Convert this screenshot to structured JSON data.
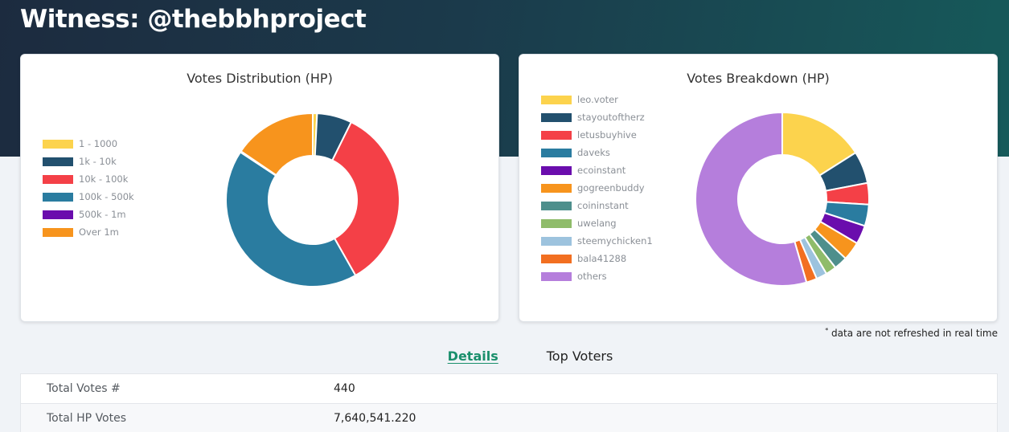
{
  "page": {
    "title": "Witness: @thebbhproject"
  },
  "distribution_card": {
    "title": "Votes Distribution (HP)",
    "legend": [
      {
        "label": "1 - 1000",
        "color": "#fcd34d"
      },
      {
        "label": "1k - 10k",
        "color": "#22506e"
      },
      {
        "label": "10k - 100k",
        "color": "#f44047"
      },
      {
        "label": "100k - 500k",
        "color": "#2a7ca0"
      },
      {
        "label": "500k - 1m",
        "color": "#6a0dad"
      },
      {
        "label": "Over 1m",
        "color": "#f7941d"
      }
    ]
  },
  "breakdown_card": {
    "title": "Votes Breakdown (HP)",
    "legend": [
      {
        "label": "leo.voter",
        "color": "#fcd34d"
      },
      {
        "label": "stayoutoftherz",
        "color": "#22506e"
      },
      {
        "label": "letusbuyhive",
        "color": "#f44047"
      },
      {
        "label": "daveks",
        "color": "#2a7ca0"
      },
      {
        "label": "ecoinstant",
        "color": "#6a0dad"
      },
      {
        "label": "gogreenbuddy",
        "color": "#f7941d"
      },
      {
        "label": "coininstant",
        "color": "#4e8f8c"
      },
      {
        "label": "uwelang",
        "color": "#8fbc6a"
      },
      {
        "label": "steemychicken1",
        "color": "#9dc3de"
      },
      {
        "label": "bala41288",
        "color": "#f26f21"
      },
      {
        "label": "others",
        "color": "#b57edc"
      }
    ]
  },
  "chart_data": [
    {
      "type": "pie",
      "title": "Votes Distribution (HP)",
      "categories": [
        "1 - 1000",
        "1k - 10k",
        "10k - 100k",
        "100k - 500k",
        "500k - 1m",
        "Over 1m"
      ],
      "values": [
        0.8,
        6.5,
        34.5,
        42.5,
        0.2,
        15.5
      ],
      "legend": "left"
    },
    {
      "type": "pie",
      "title": "Votes Breakdown (HP)",
      "categories": [
        "leo.voter",
        "stayoutoftherz",
        "letusbuyhive",
        "daveks",
        "ecoinstant",
        "gogreenbuddy",
        "coininstant",
        "uwelang",
        "steemychicken1",
        "bala41288",
        "others"
      ],
      "values": [
        16,
        6,
        4,
        4,
        3.5,
        3.5,
        2.5,
        2,
        2,
        2,
        54.5
      ],
      "legend": "left"
    }
  ],
  "note": {
    "asterisk": "*",
    "text": "data are not refreshed in real time"
  },
  "tabs": {
    "details": "Details",
    "top_voters": "Top Voters"
  },
  "details": [
    {
      "label": "Total Votes #",
      "value": "440"
    },
    {
      "label": "Total HP Votes",
      "value": "7,640,541.220"
    }
  ]
}
